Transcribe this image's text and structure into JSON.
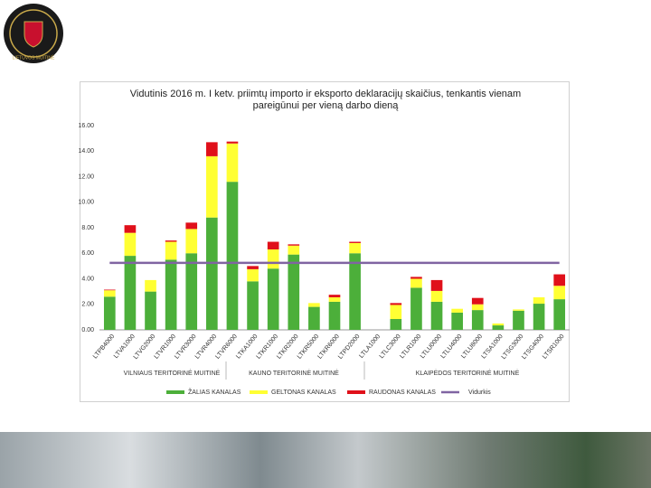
{
  "header": {
    "logo_text": "LIETUVOS MUITINĖ"
  },
  "chart_data": {
    "type": "bar",
    "stacked": true,
    "title": "Vidutinis 2016 m. I ketv. priimtų importo ir eksporto deklaracijų skaičius, tenkantis vienam pareigūnui per vieną darbo dieną",
    "categories": [
      "LTPB4000",
      "LTVA1000",
      "LTVG2000",
      "LTVR1000",
      "LTVR3000",
      "LTVR4000",
      "LTVR6000",
      "LTKA1000",
      "LTKR1000",
      "LTKR2000",
      "LTKR5000",
      "LTKR6000",
      "LTPD2000",
      "LTLA1000",
      "LTLC3000",
      "LTLR1000",
      "LTLU0000",
      "LTLU4000",
      "LTLU8000",
      "LTSA1000",
      "LTSG3000",
      "LTSG4000",
      "LTSR1000"
    ],
    "groups": [
      "VILNIAUS TERITORINĖ MUITINĖ",
      "KAUNO TERITORINĖ MUITINĖ",
      "KLAIPĖDOS TERITORINĖ MUITINĖ"
    ],
    "series": [
      {
        "name": "ŽALIAS KANALAS",
        "color": "#4caf3a",
        "values": [
          2.6,
          5.8,
          3.0,
          5.5,
          6.0,
          8.8,
          11.6,
          3.8,
          4.8,
          5.9,
          1.8,
          2.2,
          6.0,
          0,
          0.85,
          3.3,
          2.2,
          1.35,
          1.55,
          0.35,
          1.5,
          2.05,
          2.4
        ]
      },
      {
        "name": "GELTONAS KANALAS",
        "color": "#ffff33",
        "values": [
          0.5,
          1.8,
          0.9,
          1.4,
          1.9,
          4.8,
          3.0,
          0.95,
          1.5,
          0.7,
          0.3,
          0.35,
          0.8,
          0,
          1.1,
          0.7,
          0.85,
          0.3,
          0.45,
          0.15,
          0.1,
          0.5,
          1.05
        ]
      },
      {
        "name": "RAUDONAS KANALAS",
        "color": "#e0101a",
        "values": [
          0.05,
          0.6,
          0,
          0.1,
          0.5,
          1.1,
          0.15,
          0.25,
          0.6,
          0.1,
          0,
          0.2,
          0.1,
          0,
          0.15,
          0.15,
          0.85,
          0,
          0.5,
          0,
          0,
          0,
          0.9
        ]
      },
      {
        "name": "Vidurkis",
        "type": "line",
        "color": "#8064a2",
        "values": [
          5.25,
          5.25,
          5.25,
          5.25,
          5.25,
          5.25,
          5.25,
          5.25,
          5.25,
          5.25,
          5.25,
          5.25,
          5.25,
          5.25,
          5.25,
          5.25,
          5.25,
          5.25,
          5.25,
          5.25,
          5.25,
          5.25,
          5.25
        ]
      }
    ],
    "ylim": [
      0,
      16
    ],
    "yticks": [
      {
        "value": 0,
        "label": "0.00"
      },
      {
        "value": 2,
        "label": "2.00"
      },
      {
        "value": 4,
        "label": "4.00"
      },
      {
        "value": 6,
        "label": "6.00"
      },
      {
        "value": 8,
        "label": "8.00"
      },
      {
        "value": 10,
        "label": "10.00"
      },
      {
        "value": 12,
        "label": "12.00"
      },
      {
        "value": 14,
        "label": "14.00"
      },
      {
        "value": 16,
        "label": "16.00"
      }
    ],
    "legend": "bottom"
  }
}
